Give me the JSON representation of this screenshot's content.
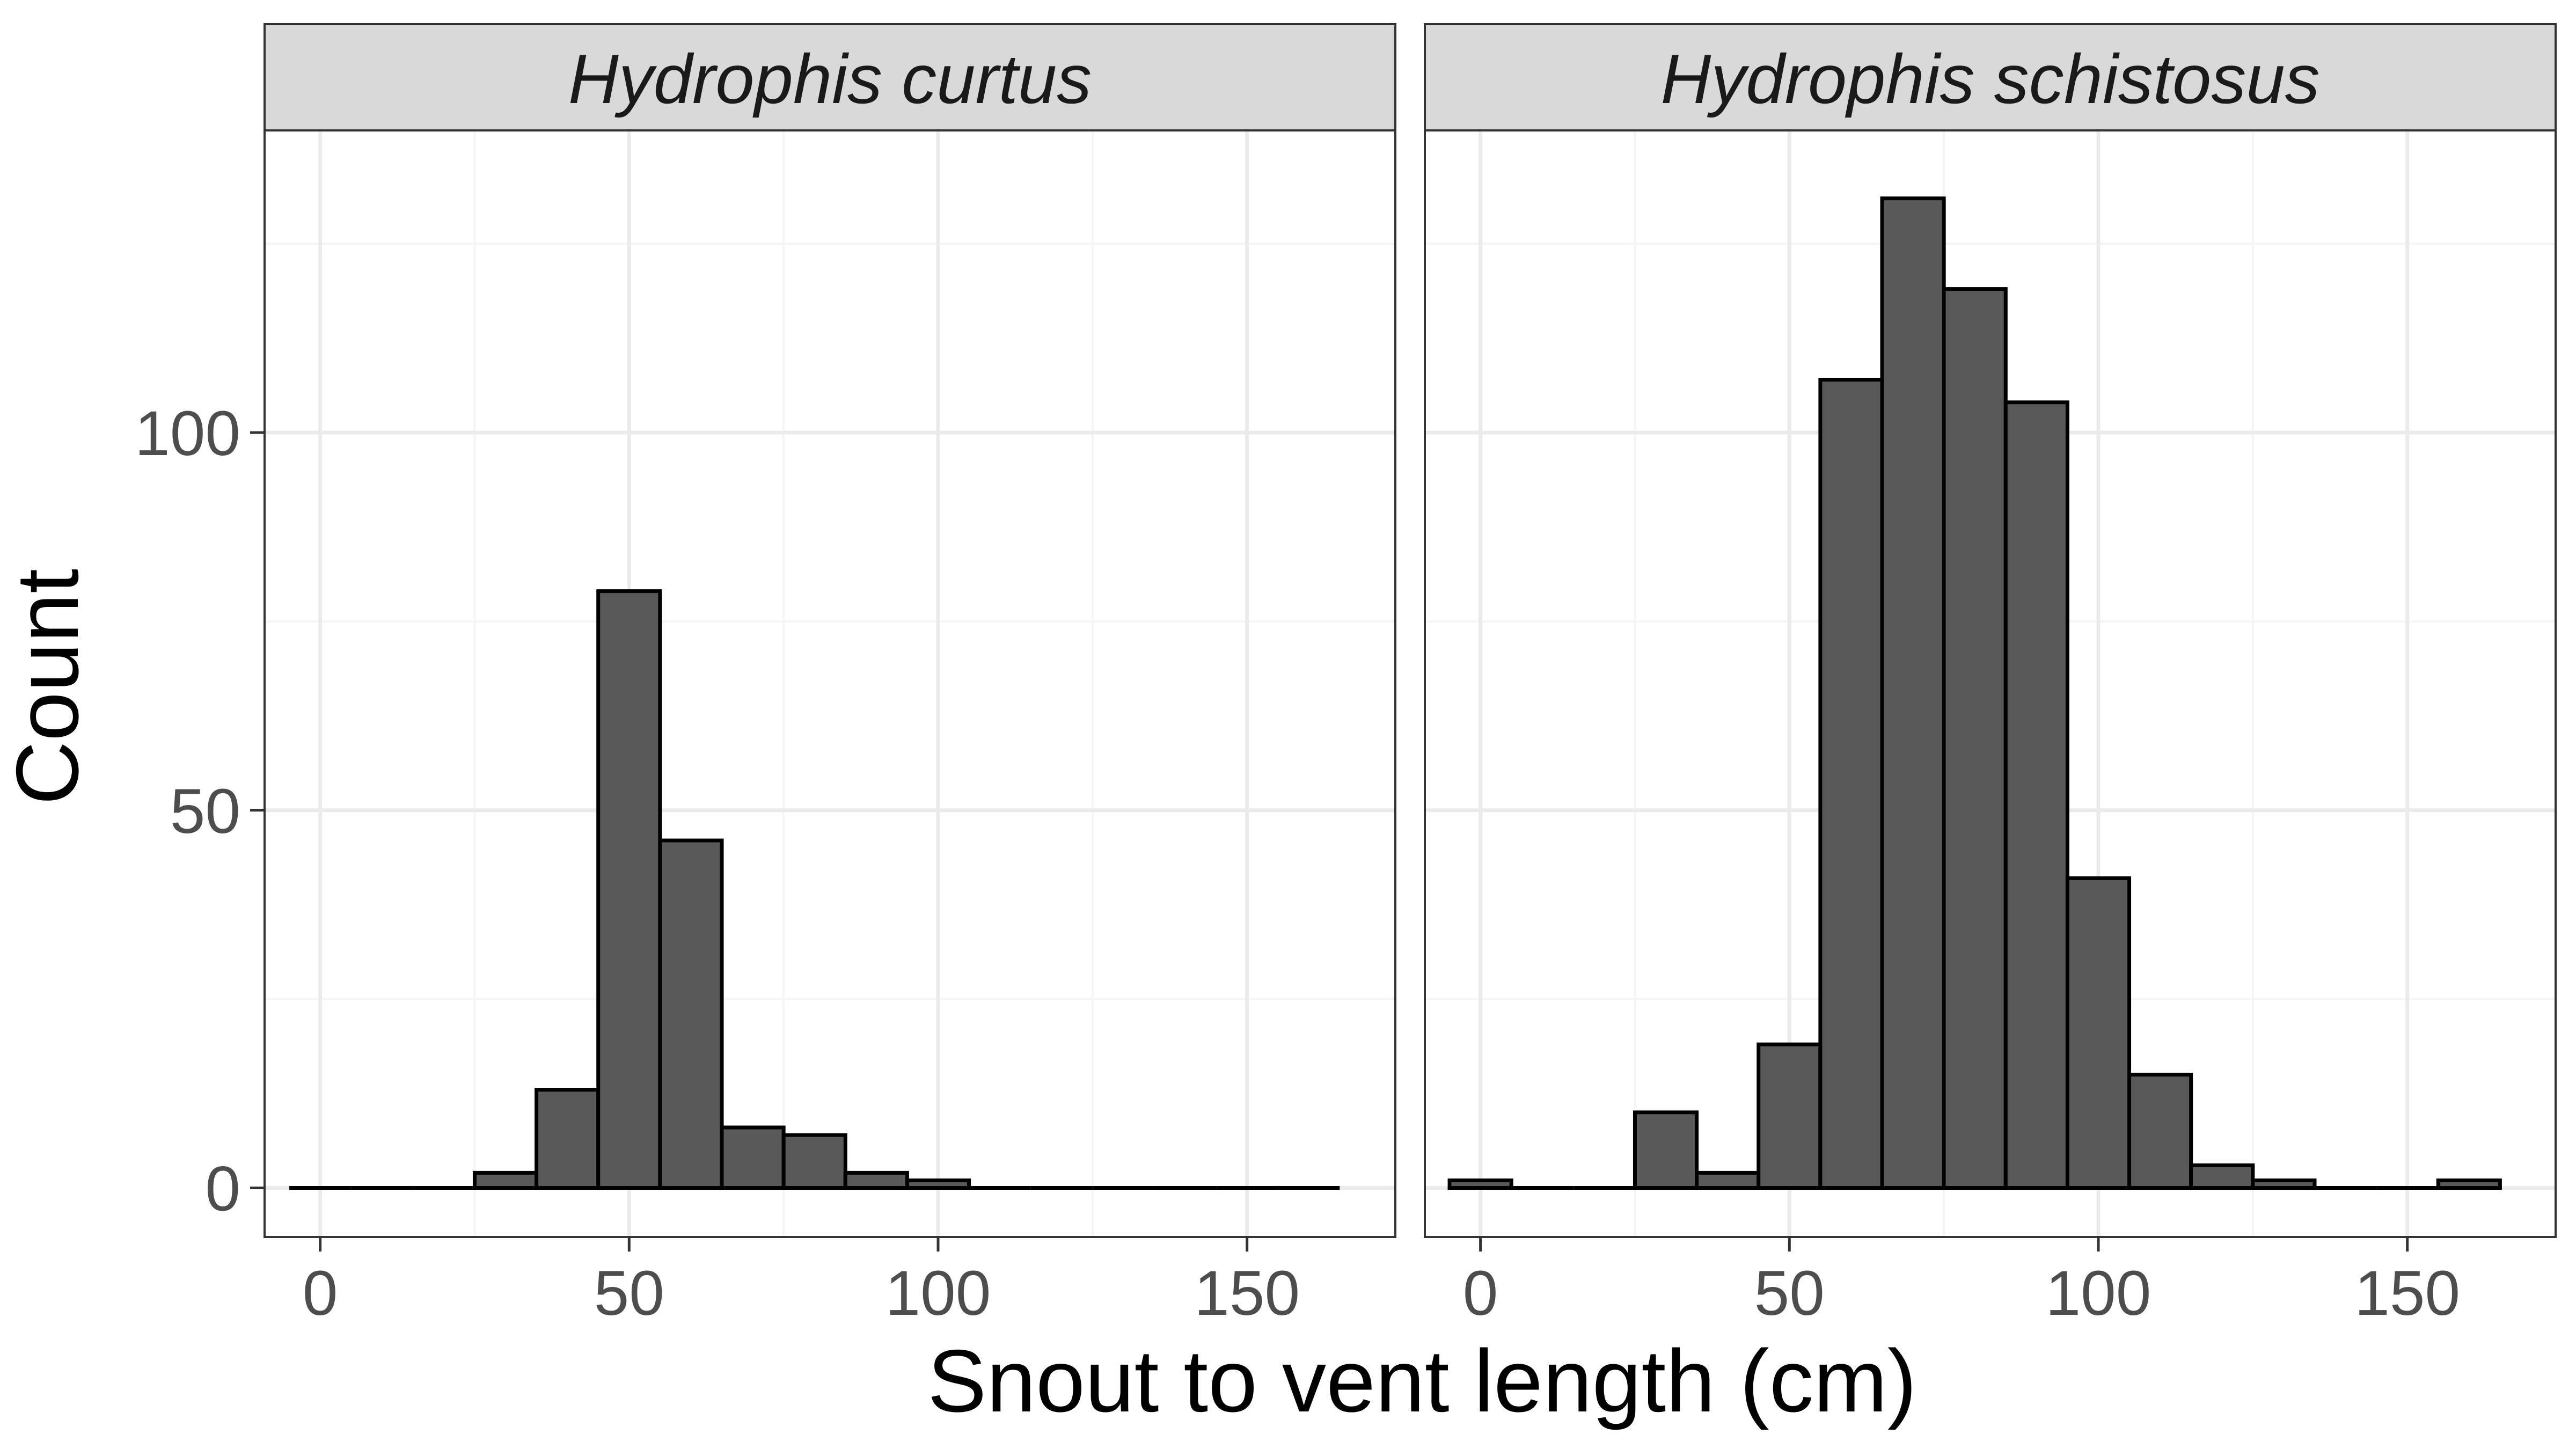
{
  "chart_data": {
    "type": "bar",
    "subtype": "histogram-faceted",
    "xlabel": "Snout to vent length (cm)",
    "ylabel": "Count",
    "xlim": [
      -9,
      174
    ],
    "ylim": [
      -6.5,
      140
    ],
    "x_ticks": [
      0,
      50,
      100,
      150
    ],
    "x_minor": [
      25,
      75,
      125
    ],
    "y_ticks": [
      0,
      50,
      100
    ],
    "y_minor": [
      25,
      75,
      125
    ],
    "bin_width": 10,
    "grid": true,
    "legend": "none",
    "colors": {
      "bar_fill": "#595959",
      "bar_outline": "#000000",
      "strip_fill": "#d9d9d9",
      "panel_border": "#333333",
      "grid_major": "#ebebeb",
      "grid_minor": "#f5f5f5"
    },
    "facets": [
      {
        "name": "Hydrophis curtus",
        "bins_start": [
          -5,
          5,
          15,
          25,
          35,
          45,
          55,
          65,
          75,
          85,
          95,
          105,
          115,
          125,
          135,
          145,
          155
        ],
        "counts": [
          0,
          0,
          0,
          2,
          13,
          79,
          46,
          8,
          7,
          2,
          1,
          0,
          0,
          0,
          0,
          0,
          0
        ]
      },
      {
        "name": "Hydrophis schistosus",
        "bins_start": [
          -5,
          5,
          15,
          25,
          35,
          45,
          55,
          65,
          75,
          85,
          95,
          105,
          115,
          125,
          135,
          145,
          155
        ],
        "counts": [
          1,
          0,
          0,
          10,
          2,
          19,
          107,
          131,
          119,
          104,
          41,
          15,
          3,
          1,
          0,
          0,
          1
        ]
      }
    ]
  }
}
